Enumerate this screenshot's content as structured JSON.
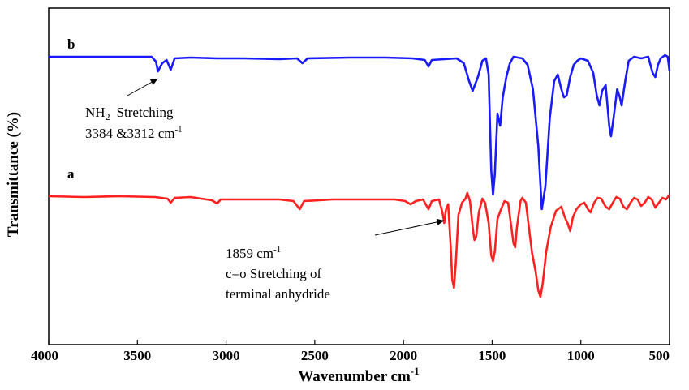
{
  "chart_data": {
    "type": "line",
    "xlabel": "Wavenumber cm",
    "xlabel_sup": "-1",
    "ylabel": "Transmittance (%)",
    "xlim": [
      4000,
      500
    ],
    "x_reversed": true,
    "x_ticks": [
      4000,
      3500,
      3000,
      2500,
      2000,
      1500,
      1000,
      500
    ],
    "y_ticks_shown": false,
    "grid": false,
    "legend": "none",
    "series": [
      {
        "name": "b",
        "color": "#1a1aff",
        "points": [
          [
            4000,
            70
          ],
          [
            3750,
            70
          ],
          [
            3500,
            70
          ],
          [
            3420,
            70
          ],
          [
            3395,
            76
          ],
          [
            3384,
            88
          ],
          [
            3360,
            78
          ],
          [
            3335,
            74
          ],
          [
            3312,
            86
          ],
          [
            3290,
            72
          ],
          [
            3200,
            71
          ],
          [
            3050,
            72
          ],
          [
            2900,
            72
          ],
          [
            2700,
            73
          ],
          [
            2600,
            72
          ],
          [
            2570,
            78
          ],
          [
            2540,
            72
          ],
          [
            2300,
            71
          ],
          [
            2100,
            71
          ],
          [
            1950,
            72
          ],
          [
            1880,
            74
          ],
          [
            1859,
            82
          ],
          [
            1840,
            74
          ],
          [
            1700,
            72
          ],
          [
            1660,
            78
          ],
          [
            1630,
            100
          ],
          [
            1610,
            112
          ],
          [
            1580,
            95
          ],
          [
            1555,
            75
          ],
          [
            1535,
            72
          ],
          [
            1520,
            92
          ],
          [
            1505,
            210
          ],
          [
            1495,
            240
          ],
          [
            1485,
            215
          ],
          [
            1470,
            140
          ],
          [
            1455,
            155
          ],
          [
            1440,
            120
          ],
          [
            1420,
            95
          ],
          [
            1400,
            78
          ],
          [
            1380,
            70
          ],
          [
            1330,
            72
          ],
          [
            1300,
            80
          ],
          [
            1270,
            110
          ],
          [
            1240,
            180
          ],
          [
            1220,
            258
          ],
          [
            1200,
            230
          ],
          [
            1175,
            145
          ],
          [
            1150,
            100
          ],
          [
            1130,
            92
          ],
          [
            1110,
            110
          ],
          [
            1095,
            120
          ],
          [
            1080,
            118
          ],
          [
            1060,
            95
          ],
          [
            1040,
            80
          ],
          [
            1020,
            75
          ],
          [
            1000,
            72
          ],
          [
            960,
            75
          ],
          [
            930,
            90
          ],
          [
            910,
            118
          ],
          [
            895,
            130
          ],
          [
            880,
            112
          ],
          [
            860,
            105
          ],
          [
            840,
            155
          ],
          [
            830,
            168
          ],
          [
            815,
            145
          ],
          [
            795,
            110
          ],
          [
            780,
            120
          ],
          [
            770,
            130
          ],
          [
            750,
            100
          ],
          [
            730,
            75
          ],
          [
            700,
            70
          ],
          [
            660,
            72
          ],
          [
            620,
            70
          ],
          [
            595,
            90
          ],
          [
            580,
            95
          ],
          [
            565,
            80
          ],
          [
            550,
            72
          ],
          [
            525,
            68
          ],
          [
            510,
            70
          ],
          [
            500,
            88
          ]
        ]
      },
      {
        "name": "a",
        "color": "#ff2020",
        "points": [
          [
            4000,
            242
          ],
          [
            3800,
            243
          ],
          [
            3600,
            242
          ],
          [
            3400,
            243
          ],
          [
            3330,
            245
          ],
          [
            3312,
            250
          ],
          [
            3290,
            244
          ],
          [
            3200,
            243
          ],
          [
            3080,
            247
          ],
          [
            3050,
            251
          ],
          [
            3030,
            246
          ],
          [
            2900,
            246
          ],
          [
            2800,
            246
          ],
          [
            2700,
            246
          ],
          [
            2620,
            248
          ],
          [
            2585,
            258
          ],
          [
            2560,
            248
          ],
          [
            2400,
            246
          ],
          [
            2200,
            246
          ],
          [
            2050,
            246
          ],
          [
            1990,
            248
          ],
          [
            1960,
            252
          ],
          [
            1930,
            248
          ],
          [
            1890,
            246
          ],
          [
            1859,
            258
          ],
          [
            1840,
            248
          ],
          [
            1800,
            246
          ],
          [
            1780,
            262
          ],
          [
            1770,
            275
          ],
          [
            1760,
            258
          ],
          [
            1748,
            252
          ],
          [
            1735,
            300
          ],
          [
            1725,
            345
          ],
          [
            1715,
            355
          ],
          [
            1705,
            325
          ],
          [
            1690,
            265
          ],
          [
            1670,
            250
          ],
          [
            1650,
            245
          ],
          [
            1640,
            238
          ],
          [
            1625,
            248
          ],
          [
            1610,
            280
          ],
          [
            1600,
            296
          ],
          [
            1590,
            292
          ],
          [
            1575,
            262
          ],
          [
            1555,
            245
          ],
          [
            1540,
            250
          ],
          [
            1520,
            275
          ],
          [
            1505,
            315
          ],
          [
            1495,
            322
          ],
          [
            1485,
            310
          ],
          [
            1470,
            270
          ],
          [
            1450,
            258
          ],
          [
            1430,
            248
          ],
          [
            1410,
            250
          ],
          [
            1395,
            275
          ],
          [
            1380,
            300
          ],
          [
            1370,
            305
          ],
          [
            1360,
            280
          ],
          [
            1340,
            248
          ],
          [
            1330,
            244
          ],
          [
            1310,
            250
          ],
          [
            1290,
            285
          ],
          [
            1275,
            312
          ],
          [
            1255,
            335
          ],
          [
            1240,
            358
          ],
          [
            1228,
            366
          ],
          [
            1215,
            350
          ],
          [
            1195,
            310
          ],
          [
            1170,
            280
          ],
          [
            1140,
            260
          ],
          [
            1110,
            255
          ],
          [
            1090,
            268
          ],
          [
            1075,
            275
          ],
          [
            1060,
            285
          ],
          [
            1045,
            268
          ],
          [
            1025,
            258
          ],
          [
            1000,
            252
          ],
          [
            980,
            250
          ],
          [
            960,
            258
          ],
          [
            945,
            262
          ],
          [
            925,
            250
          ],
          [
            905,
            244
          ],
          [
            885,
            245
          ],
          [
            860,
            255
          ],
          [
            840,
            258
          ],
          [
            820,
            250
          ],
          [
            800,
            243
          ],
          [
            780,
            245
          ],
          [
            760,
            255
          ],
          [
            740,
            258
          ],
          [
            720,
            250
          ],
          [
            700,
            244
          ],
          [
            680,
            246
          ],
          [
            660,
            254
          ],
          [
            640,
            250
          ],
          [
            620,
            243
          ],
          [
            600,
            246
          ],
          [
            580,
            256
          ],
          [
            560,
            250
          ],
          [
            540,
            244
          ],
          [
            520,
            246
          ],
          [
            500,
            240
          ]
        ]
      }
    ],
    "series_labels": [
      {
        "text": "b",
        "series": "b"
      },
      {
        "text": "a",
        "series": "a"
      }
    ],
    "annotations": [
      {
        "id": "nh2",
        "lines": [
          "NH",
          "Stretching",
          "3384 &3312 cm"
        ],
        "sub": "2",
        "sup": "-1",
        "target_x": 3384
      },
      {
        "id": "co",
        "lines": [
          "1859 cm",
          "c=o Stretching of",
          "terminal  anhydride"
        ],
        "sup": "-1",
        "target_x": 1770
      }
    ]
  }
}
